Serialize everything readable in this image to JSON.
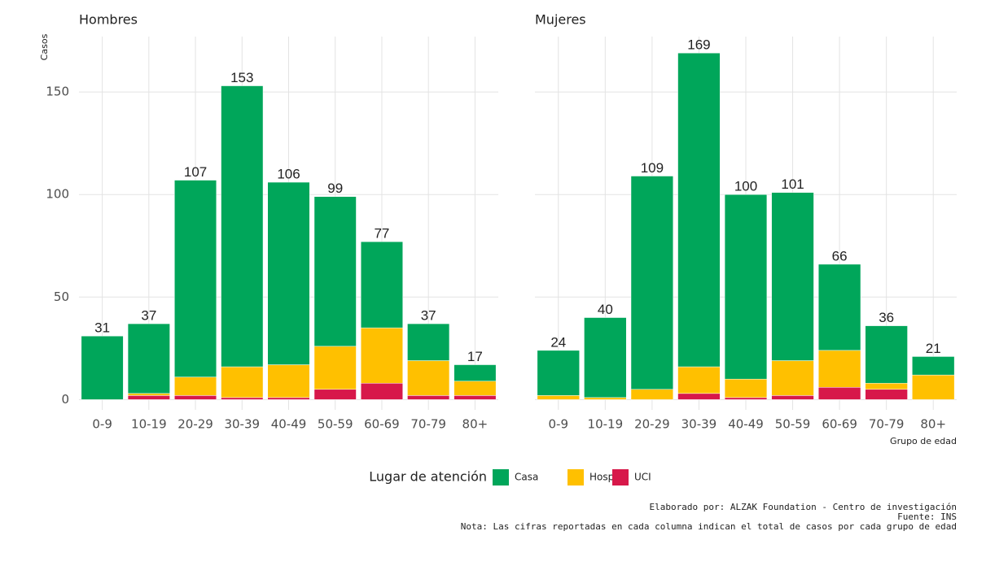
{
  "y_label": "Casos",
  "x_label": "Grupo de edad",
  "legend": {
    "title": "Lugar de atención",
    "entries": [
      {
        "name": "Casa",
        "color": "#00a65a"
      },
      {
        "name": "Hospital",
        "color": "#ffc000"
      },
      {
        "name": "UCI",
        "color": "#d7184a"
      }
    ]
  },
  "captions": [
    "Elaborado por: ALZAK Foundation - Centro de investigación",
    "Fuente: INS",
    "Nota: Las cifras reportadas en cada columna indican el total de casos por cada grupo de edad"
  ],
  "chart_data": [
    {
      "type": "bar",
      "stacked": true,
      "title": "Hombres",
      "categories": [
        "0-9",
        "10-19",
        "20-29",
        "30-39",
        "40-49",
        "50-59",
        "60-69",
        "70-79",
        "80+"
      ],
      "series": [
        {
          "values": [
            31,
            34,
            96,
            137,
            89,
            73,
            42,
            18,
            8
          ]
        },
        {
          "values": [
            0,
            1,
            9,
            15,
            16,
            21,
            27,
            17,
            7
          ]
        },
        {
          "values": [
            0,
            2,
            2,
            1,
            1,
            5,
            8,
            2,
            2
          ]
        }
      ],
      "totals": [
        31,
        37,
        107,
        153,
        106,
        99,
        77,
        37,
        17
      ],
      "ylim": [
        -5,
        177
      ],
      "yticks": [
        0,
        50,
        100,
        150
      ],
      "grid": true
    },
    {
      "type": "bar",
      "stacked": true,
      "title": "Mujeres",
      "categories": [
        "0-9",
        "10-19",
        "20-29",
        "30-39",
        "40-49",
        "50-59",
        "60-69",
        "70-79",
        "80+"
      ],
      "series": [
        {
          "values": [
            22,
            39,
            104,
            153,
            90,
            82,
            42,
            28,
            9
          ]
        },
        {
          "values": [
            2,
            1,
            5,
            13,
            9,
            17,
            18,
            3,
            12
          ]
        },
        {
          "values": [
            0,
            0,
            0,
            3,
            1,
            2,
            6,
            5,
            0
          ]
        }
      ],
      "totals": [
        24,
        40,
        109,
        169,
        100,
        101,
        66,
        36,
        21
      ],
      "ylim": [
        -5,
        177
      ],
      "yticks": [
        0,
        50,
        100,
        150
      ],
      "grid": true
    }
  ]
}
